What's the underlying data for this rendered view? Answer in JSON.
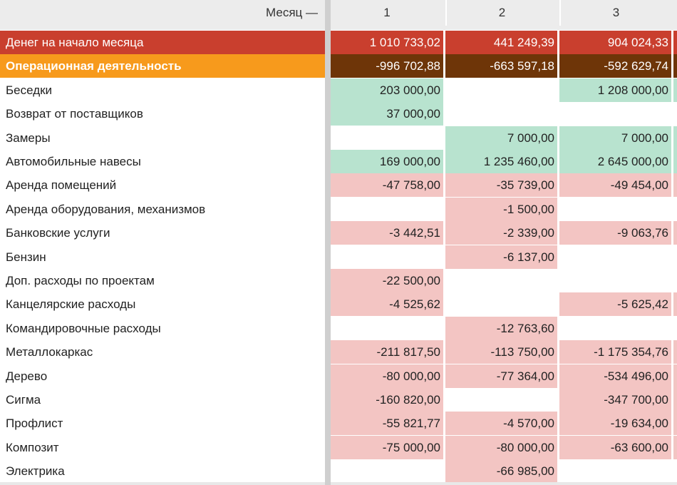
{
  "header": {
    "month_label": "Месяц —",
    "columns": [
      "1",
      "2",
      "3"
    ]
  },
  "rows": [
    {
      "label": "Денег на начало месяца",
      "values": [
        "1 010 733,02",
        "441 249,39",
        "904 024,33"
      ],
      "types": [
        "",
        "",
        ""
      ],
      "style": "red"
    },
    {
      "label": "Операционная деятельность",
      "values": [
        "-996 702,88",
        "-663 597,18",
        "-592 629,74"
      ],
      "types": [
        "",
        "",
        ""
      ],
      "style": "orange"
    },
    {
      "label": "Беседки",
      "values": [
        "203 000,00",
        "",
        "1 208 000,00"
      ],
      "types": [
        "pos",
        "",
        "pos"
      ]
    },
    {
      "label": "Возврат от поставщиков",
      "values": [
        "37 000,00",
        "",
        ""
      ],
      "types": [
        "pos",
        "",
        ""
      ]
    },
    {
      "label": "Замеры",
      "values": [
        "",
        "7 000,00",
        "7 000,00"
      ],
      "types": [
        "",
        "pos",
        "pos"
      ]
    },
    {
      "label": "Автомобильные навесы",
      "values": [
        "169 000,00",
        "1 235 460,00",
        "2 645 000,00"
      ],
      "types": [
        "pos",
        "pos",
        "pos"
      ]
    },
    {
      "label": "Аренда помещений",
      "values": [
        "-47 758,00",
        "-35 739,00",
        "-49 454,00"
      ],
      "types": [
        "neg",
        "neg",
        "neg"
      ]
    },
    {
      "label": "Аренда  оборудования, механизмов",
      "values": [
        "",
        "-1 500,00",
        ""
      ],
      "types": [
        "",
        "neg",
        ""
      ]
    },
    {
      "label": "Банковские услуги",
      "values": [
        "-3 442,51",
        "-2 339,00",
        "-9 063,76"
      ],
      "types": [
        "neg",
        "neg",
        "neg"
      ]
    },
    {
      "label": "Бензин",
      "values": [
        "",
        "-6 137,00",
        ""
      ],
      "types": [
        "",
        "neg",
        ""
      ]
    },
    {
      "label": "Доп. расходы по проектам",
      "values": [
        "-22 500,00",
        "",
        ""
      ],
      "types": [
        "neg",
        "",
        ""
      ]
    },
    {
      "label": "Канцелярские расходы",
      "values": [
        "-4 525,62",
        "",
        "-5 625,42"
      ],
      "types": [
        "neg",
        "",
        "neg"
      ]
    },
    {
      "label": "Командировочные расходы",
      "values": [
        "",
        "-12 763,60",
        ""
      ],
      "types": [
        "",
        "neg",
        ""
      ]
    },
    {
      "label": "Металлокаркас",
      "values": [
        "-211 817,50",
        "-113 750,00",
        "-1 175 354,76"
      ],
      "types": [
        "neg",
        "neg",
        "neg"
      ]
    },
    {
      "label": "Дерево",
      "values": [
        "-80 000,00",
        "-77 364,00",
        "-534 496,00"
      ],
      "types": [
        "neg",
        "neg",
        "neg"
      ]
    },
    {
      "label": "Сигма",
      "values": [
        "-160 820,00",
        "",
        "-347 700,00"
      ],
      "types": [
        "neg",
        "",
        "neg"
      ]
    },
    {
      "label": "Профлист",
      "values": [
        "-55 821,77",
        "-4 570,00",
        "-19 634,00"
      ],
      "types": [
        "neg",
        "neg",
        "neg"
      ]
    },
    {
      "label": "Композит",
      "values": [
        "-75 000,00",
        "-80 000,00",
        "-63 600,00"
      ],
      "types": [
        "neg",
        "neg",
        "neg"
      ]
    },
    {
      "label": "Электрика",
      "values": [
        "",
        "-66 985,00",
        ""
      ],
      "types": [
        "",
        "neg",
        ""
      ]
    }
  ]
}
